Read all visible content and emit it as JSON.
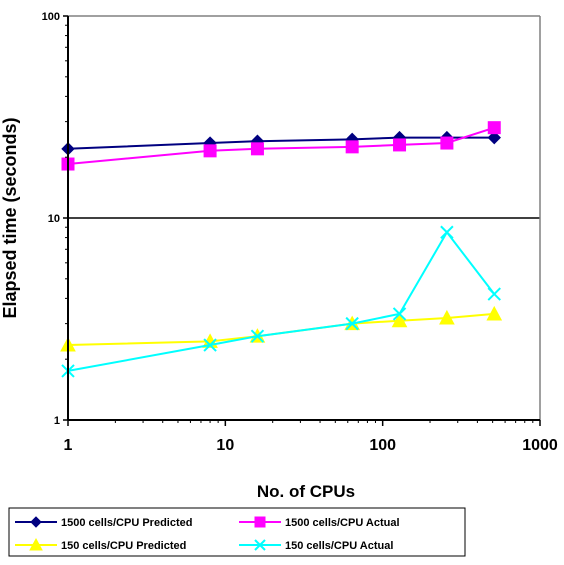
{
  "chart_data": {
    "type": "line",
    "title": "",
    "xlabel": "No. of CPUs",
    "ylabel": "Elapsed time (seconds)",
    "x_scale": "log",
    "y_scale": "log",
    "xlim": [
      1,
      1000
    ],
    "ylim": [
      1,
      100
    ],
    "x_ticks": [
      1,
      10,
      100,
      1000
    ],
    "x_tick_labels": [
      "1",
      "10",
      "100",
      "1000"
    ],
    "y_ticks": [
      1,
      10,
      100
    ],
    "y_tick_labels": [
      "1",
      "10",
      "100"
    ],
    "grid": "horizontal major line at 10",
    "legend_position": "bottom",
    "series": [
      {
        "name": "1500 cells/CPU Predicted",
        "color": "#000080",
        "marker": "diamond",
        "x": [
          1,
          8,
          16,
          64,
          128,
          256,
          512
        ],
        "y": [
          22,
          23.5,
          24,
          24.5,
          25,
          25,
          25
        ]
      },
      {
        "name": "1500 cells/CPU Actual",
        "color": "#ff00ff",
        "marker": "square",
        "x": [
          1,
          8,
          16,
          64,
          128,
          256,
          512
        ],
        "y": [
          18.5,
          21.5,
          22,
          22.5,
          23,
          23.5,
          28
        ]
      },
      {
        "name": "150 cells/CPU Predicted",
        "color": "#ffff00",
        "marker": "triangle",
        "x": [
          1,
          8,
          16,
          64,
          128,
          256,
          512
        ],
        "y": [
          2.35,
          2.45,
          2.6,
          3.0,
          3.1,
          3.2,
          3.35
        ]
      },
      {
        "name": "150 cells/CPU Actual",
        "color": "#00ffff",
        "marker": "x",
        "x": [
          1,
          8,
          16,
          64,
          128,
          256,
          512
        ],
        "y": [
          1.75,
          2.35,
          2.6,
          3.0,
          3.35,
          8.5,
          4.2
        ]
      }
    ]
  }
}
